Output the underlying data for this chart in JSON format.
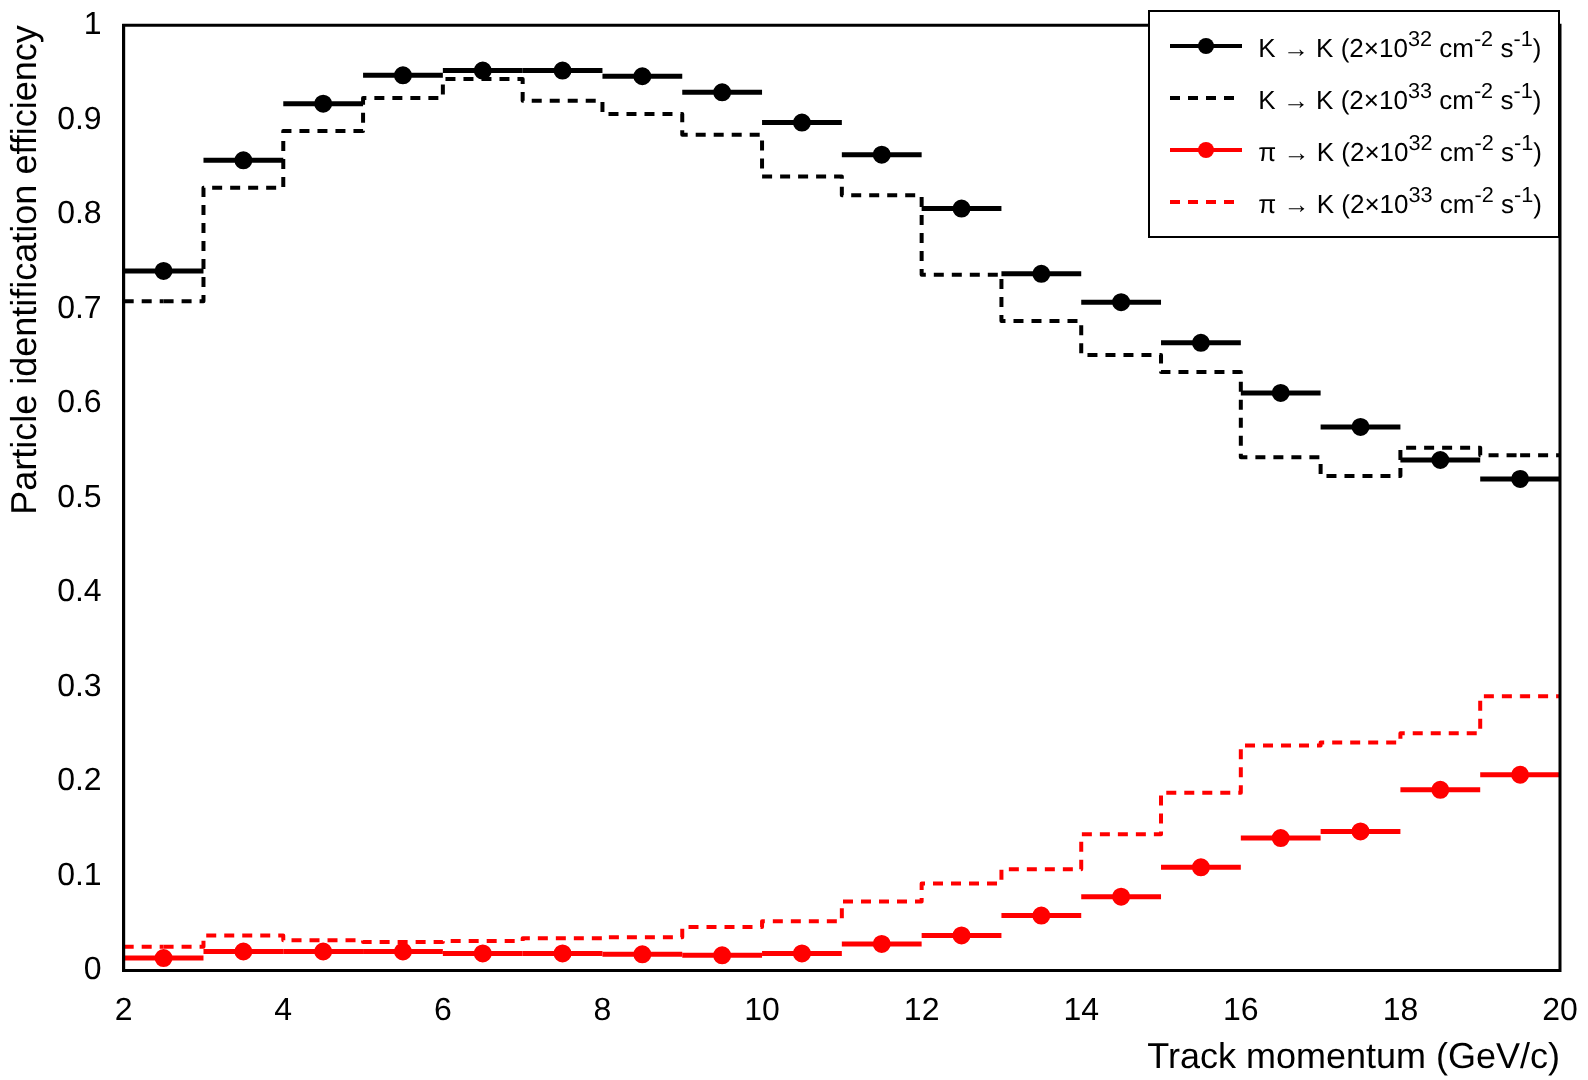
{
  "chart_data": {
    "type": "scatter",
    "xlabel": "Track momentum (GeV/c)",
    "ylabel": "Particle identification efficiency",
    "xlim": [
      2,
      20
    ],
    "xticks": [
      2,
      4,
      6,
      8,
      10,
      12,
      14,
      16,
      18,
      20
    ],
    "ylim": [
      0,
      1
    ],
    "yticks": [
      0,
      0.1,
      0.2,
      0.3,
      0.4,
      0.5,
      0.6,
      0.7,
      0.8,
      0.9,
      1
    ],
    "grid": false,
    "legend": "top right",
    "marker": "circle",
    "x": [
      2.5,
      3.5,
      4.5,
      5.5,
      6.5,
      7.5,
      8.5,
      9.5,
      10.5,
      11.5,
      12.5,
      13.5,
      14.5,
      15.5,
      16.5,
      17.5,
      18.5,
      19.5
    ],
    "series": [
      {
        "name": "K → K (2×10$^{32}$ cm$^{-2}$ s$^{-1}$)",
        "color": "#000000",
        "values": [
          0.74,
          0.857,
          0.917,
          0.947,
          0.952,
          0.952,
          0.946,
          0.929,
          0.897,
          0.863,
          0.806,
          0.737,
          0.707,
          0.664,
          0.611,
          0.575,
          0.54,
          0.52
        ],
        "xerrors": [
          0.5,
          0.5,
          0.5,
          0.5,
          0.5,
          0.5,
          0.5,
          0.5,
          0.5,
          0.5,
          0.5,
          0.5,
          0.5,
          0.5,
          0.5,
          0.5,
          0.5,
          0.5
        ]
      },
      {
        "name": "K → K (2×10$^{33}$ cm$^{-2}$ s$^{-1}$)",
        "type": "step",
        "marker": "none",
        "line_style": "dashed",
        "color": "#000000",
        "values": [
          0.708,
          0.828,
          0.888,
          0.923,
          0.943,
          0.92,
          0.906,
          0.884,
          0.84,
          0.82,
          0.736,
          0.687,
          0.651,
          0.633,
          0.543,
          0.523,
          0.553,
          0.545
        ]
      },
      {
        "name": "π → K (2×10$^{32}$ cm$^{-2}$ s$^{-1}$)",
        "color": "#ff0000",
        "values": [
          0.013,
          0.02,
          0.02,
          0.02,
          0.018,
          0.018,
          0.017,
          0.016,
          0.018,
          0.028,
          0.037,
          0.058,
          0.078,
          0.109,
          0.14,
          0.147,
          0.191,
          0.207
        ],
        "xerrors": [
          0.5,
          0.5,
          0.5,
          0.5,
          0.5,
          0.5,
          0.5,
          0.5,
          0.5,
          0.5,
          0.5,
          0.5,
          0.5,
          0.5,
          0.5,
          0.5,
          0.5,
          0.5
        ]
      },
      {
        "name": "π → K (2×10$^{33}$ cm$^{-2}$ s$^{-1}$)",
        "type": "step",
        "marker": "none",
        "line_style": "dashed",
        "color": "#ff0000",
        "values": [
          0.025,
          0.037,
          0.032,
          0.03,
          0.031,
          0.034,
          0.035,
          0.046,
          0.052,
          0.073,
          0.092,
          0.107,
          0.144,
          0.188,
          0.238,
          0.241,
          0.251,
          0.29
        ]
      }
    ]
  }
}
